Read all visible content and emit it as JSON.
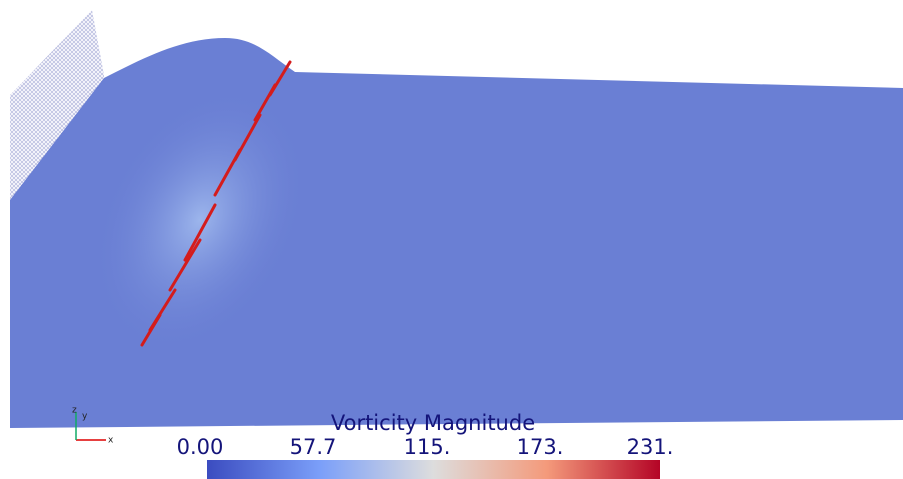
{
  "legend": {
    "title": "Vorticity Magnitude",
    "labels": [
      "0.00",
      "57.7",
      "115.",
      "173.",
      "231."
    ]
  },
  "axes": {
    "x": "x",
    "y": "y",
    "z": "z"
  }
}
